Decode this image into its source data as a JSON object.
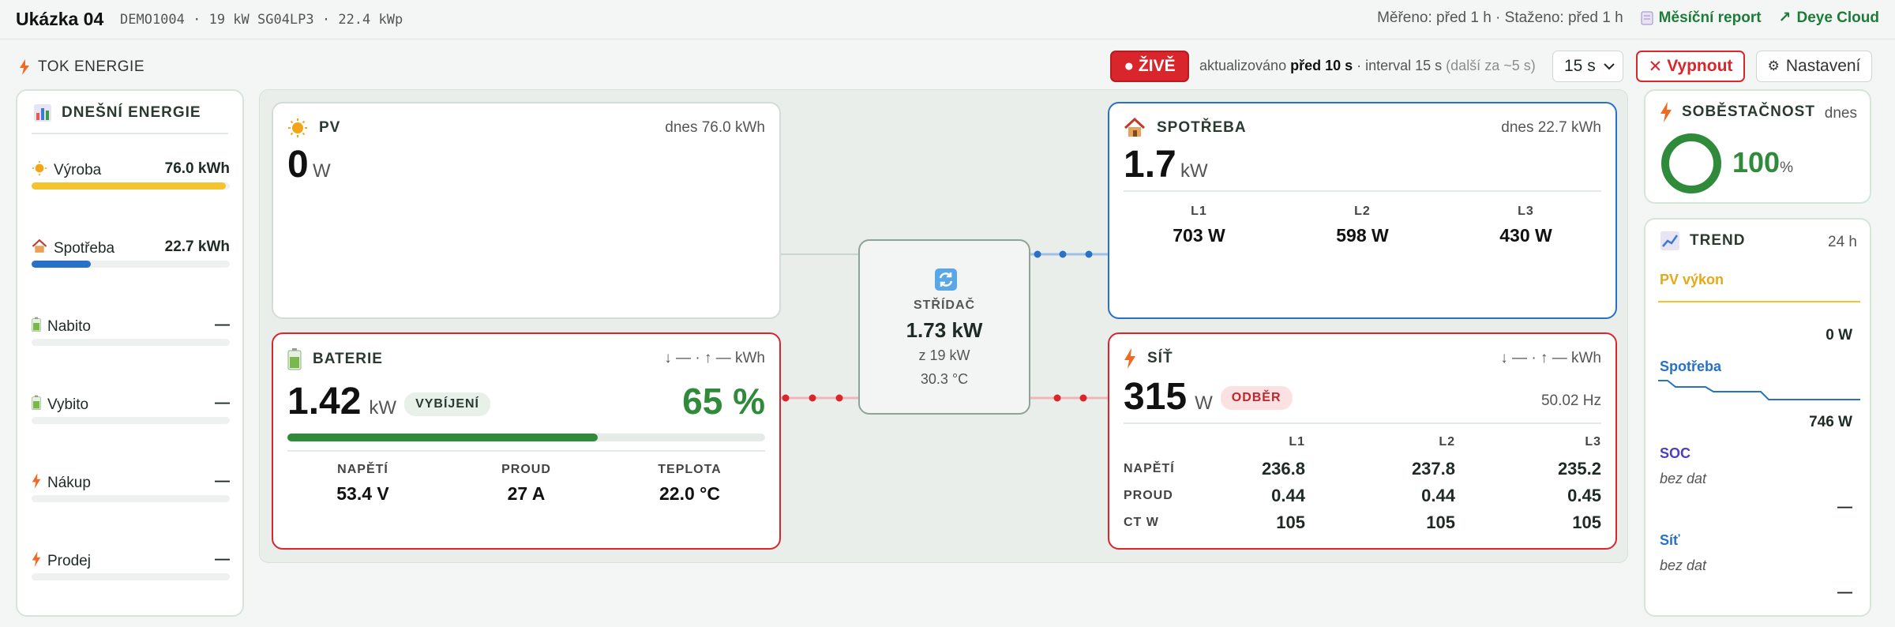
{
  "header": {
    "title": "Ukázka 04",
    "subtitle": "DEMO1004 · 19 kW SG04LP3 · 22.4 kWp",
    "meta": "Měřeno: před 1 h · Staženo: před 1 h",
    "report_link": "Měsíční report",
    "cloud_link": "Deye Cloud"
  },
  "toolbar": {
    "section_title": "TOK ENERGIE",
    "live_label": "● ŽIVĚ",
    "updated_prefix": "aktualizováno ",
    "updated_value": "před 10 s",
    "interval_text": " · interval 15 s ",
    "next_text": "(další za ~5 s)",
    "interval_select": "15 s",
    "off_label": "Vypnout",
    "settings_label": "Nastavení"
  },
  "today": {
    "title": "DNEŠNÍ ENERGIE",
    "rows": [
      {
        "icon": "sun-icon",
        "label": "Výroba",
        "value": "76.0 kWh",
        "fill": 0.98,
        "color": "#f4c430"
      },
      {
        "icon": "house-icon",
        "label": "Spotřeba",
        "value": "22.7 kWh",
        "fill": 0.3,
        "color": "#2771c6"
      },
      {
        "icon": "battery-icon",
        "label": "Nabito",
        "value": "—",
        "fill": 0,
        "color": "#3a9a49"
      },
      {
        "icon": "battery-icon",
        "label": "Vybito",
        "value": "—",
        "fill": 0,
        "color": "#3a9a49"
      },
      {
        "icon": "bolt-icon",
        "label": "Nákup",
        "value": "—",
        "fill": 0,
        "color": "#e8702a"
      },
      {
        "icon": "bolt-icon",
        "label": "Prodej",
        "value": "—",
        "fill": 0,
        "color": "#e8702a"
      }
    ]
  },
  "pv": {
    "title": "PV",
    "today": "dnes 76.0 kWh",
    "value": "0",
    "unit": "W"
  },
  "inverter": {
    "title": "STŘÍDAČ",
    "value": "1.73 kW",
    "rated": "z 19 kW",
    "temp": "30.3 °C"
  },
  "consumption": {
    "title": "SPOTŘEBA",
    "today": "dnes 22.7 kWh",
    "value": "1.7",
    "unit": "kW",
    "phases": [
      {
        "label": "L1",
        "value": "703 W"
      },
      {
        "label": "L2",
        "value": "598 W"
      },
      {
        "label": "L3",
        "value": "430 W"
      }
    ]
  },
  "battery": {
    "title": "BATERIE",
    "flow": "↓ — · ↑ — kWh",
    "value": "1.42",
    "unit": "kW",
    "state": "VYBÍJENÍ",
    "soc": "65 %",
    "soc_fraction": 0.65,
    "stats": [
      {
        "label": "NAPĚTÍ",
        "value": "53.4 V"
      },
      {
        "label": "PROUD",
        "value": "27 A"
      },
      {
        "label": "TEPLOTA",
        "value": "22.0 °C"
      }
    ]
  },
  "grid": {
    "title": "SÍŤ",
    "flow": "↓ — · ↑ — kWh",
    "value": "315",
    "unit": "W",
    "state": "ODBĚR",
    "freq": "50.02 Hz",
    "cols": [
      "L1",
      "L2",
      "L3"
    ],
    "rows": [
      {
        "label": "NAPĚTÍ",
        "values": [
          "236.8",
          "237.8",
          "235.2"
        ]
      },
      {
        "label": "PROUD",
        "values": [
          "0.44",
          "0.44",
          "0.45"
        ]
      },
      {
        "label": "CT W",
        "values": [
          "105",
          "105",
          "105"
        ]
      }
    ]
  },
  "self_sufficiency": {
    "title": "SOBĚSTAČNOST",
    "period": "dnes",
    "value": "100",
    "unit": "%"
  },
  "trend": {
    "title": "TREND",
    "period": "24 h",
    "pv_label": "PV výkon",
    "pv_value": "0 W",
    "cons_label": "Spotřeba",
    "cons_value": "746 W",
    "soc_label": "SOC",
    "soc_note": "bez dat",
    "soc_value": "—",
    "grid_label": "Síť",
    "grid_note": "bez dat",
    "grid_value": "—"
  }
}
